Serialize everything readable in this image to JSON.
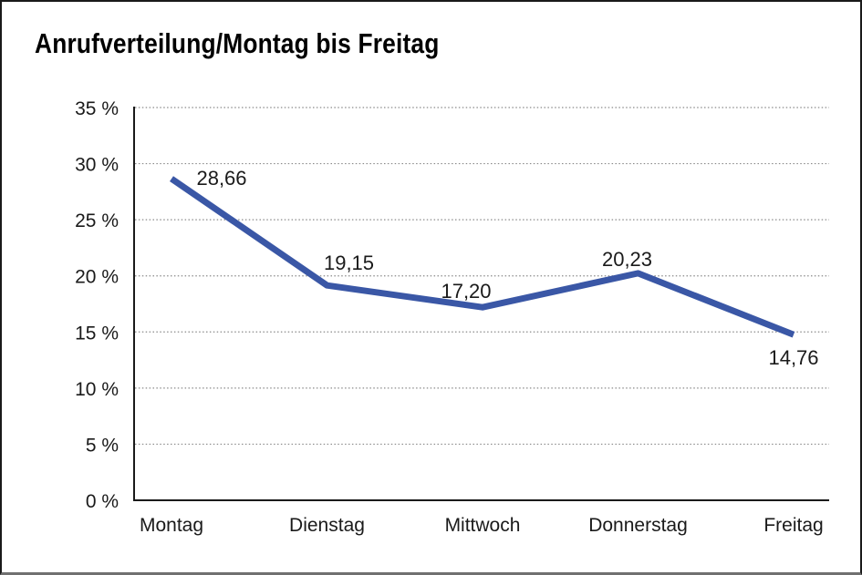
{
  "chart_data": {
    "type": "line",
    "title": "Anrufverteilung/Montag bis Freitag",
    "categories": [
      "Montag",
      "Dienstag",
      "Mittwoch",
      "Donnerstag",
      "Freitag"
    ],
    "values": [
      28.66,
      19.15,
      17.2,
      20.23,
      14.76
    ],
    "value_labels": [
      "28,66",
      "19,15",
      "17,20",
      "20,23",
      "14,76"
    ],
    "y_tick_labels": [
      "0 %",
      "5 %",
      "10 %",
      "15 %",
      "20 %",
      "25 %",
      "30 %",
      "35 %"
    ],
    "ylim": [
      0,
      35
    ],
    "y_step": 5,
    "xlabel": "",
    "ylabel": "",
    "legend": "none",
    "grid": "horizontal-dotted",
    "line_color": "#3A57A6",
    "grid_color": "#8a8a8a",
    "axis_color": "#1a1a1a",
    "label_color": "#1a1a1a",
    "background_color": "#ffffff",
    "border_color": "#1a1a1a"
  }
}
